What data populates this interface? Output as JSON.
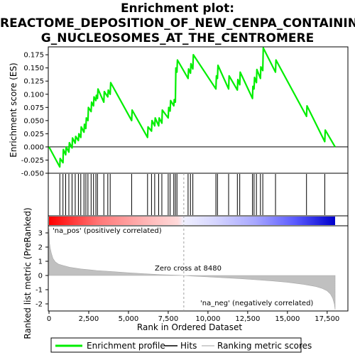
{
  "title_lines": [
    "Enrichment plot:",
    "REACTOME_DEPOSITION_OF_NEW_CENPA_CONTAININ",
    "G_NUCLEOSOMES_AT_THE_CENTROMERE"
  ],
  "chart_data": {
    "type": "line",
    "es_panel": {
      "ylabel": "Enrichment score (ES)",
      "ylim": [
        -0.05,
        0.19
      ],
      "yticks": [
        -0.05,
        -0.025,
        0.0,
        0.025,
        0.05,
        0.075,
        0.1,
        0.125,
        0.15,
        0.175
      ],
      "ytick_labels": [
        "-0.050",
        "-0.025",
        "0.000",
        "0.025",
        "0.050",
        "0.075",
        "0.100",
        "0.125",
        "0.150",
        "0.175"
      ],
      "series": [
        {
          "name": "Enrichment profile",
          "color": "#00ee00",
          "x": [
            0,
            680,
            700,
            880,
            900,
            1050,
            1080,
            1250,
            1280,
            1450,
            1480,
            1650,
            1680,
            1850,
            1880,
            2000,
            2030,
            2200,
            2230,
            2320,
            2350,
            2450,
            2480,
            2650,
            2680,
            2800,
            2830,
            2950,
            2980,
            3050,
            3080,
            3450,
            3480,
            3700,
            3730,
            3850,
            3880,
            5200,
            5230,
            6200,
            6230,
            6450,
            6480,
            6650,
            6680,
            6900,
            6930,
            7100,
            7130,
            7500,
            7530,
            7620,
            7650,
            7850,
            7880,
            7950,
            7980,
            8050,
            8080,
            8750,
            8780,
            8900,
            8930,
            9050,
            9080,
            10500,
            10530,
            10600,
            10630,
            11300,
            11330,
            11850,
            11880,
            12000,
            12030,
            12800,
            12830,
            12900,
            12930,
            13050,
            13080,
            13300,
            13330,
            13450,
            13480,
            14250,
            14280,
            16200,
            16230,
            17350,
            17380,
            18000
          ],
          "y": [
            0.0,
            -0.038,
            -0.022,
            -0.03,
            -0.005,
            -0.015,
            0.0,
            -0.01,
            0.008,
            -0.002,
            0.017,
            0.007,
            0.02,
            0.012,
            0.025,
            0.018,
            0.038,
            0.028,
            0.043,
            0.035,
            0.055,
            0.05,
            0.075,
            0.067,
            0.085,
            0.078,
            0.095,
            0.088,
            0.098,
            0.092,
            0.11,
            0.085,
            0.105,
            0.095,
            0.108,
            0.1,
            0.122,
            0.05,
            0.07,
            0.018,
            0.038,
            0.03,
            0.05,
            0.04,
            0.055,
            0.04,
            0.055,
            0.045,
            0.07,
            0.055,
            0.075,
            0.068,
            0.088,
            0.078,
            0.09,
            0.085,
            0.15,
            0.142,
            0.165,
            0.13,
            0.148,
            0.14,
            0.158,
            0.148,
            0.175,
            0.11,
            0.135,
            0.13,
            0.155,
            0.11,
            0.135,
            0.108,
            0.128,
            0.118,
            0.142,
            0.092,
            0.115,
            0.11,
            0.132,
            0.122,
            0.147,
            0.13,
            0.152,
            0.145,
            0.188,
            0.142,
            0.165,
            0.058,
            0.078,
            0.01,
            0.032,
            0.0
          ]
        }
      ]
    },
    "hits": [
      680,
      880,
      1050,
      1250,
      1450,
      1650,
      1850,
      2000,
      2200,
      2320,
      2450,
      2650,
      2800,
      2950,
      3050,
      3450,
      3700,
      3850,
      5200,
      6200,
      6450,
      6650,
      6900,
      7100,
      7500,
      7620,
      7850,
      7950,
      8050,
      8750,
      8900,
      9050,
      10500,
      10600,
      11300,
      11850,
      12000,
      12800,
      12900,
      13050,
      13300,
      13450,
      14250,
      16200,
      17350
    ],
    "rank_panel": {
      "ylabel": "Ranked list metric (PreRanked)",
      "xlabel": "Rank in Ordered Dataset",
      "ylim": [
        -2.5,
        3.5
      ],
      "yticks": [
        -2,
        -1,
        0,
        1,
        2,
        3
      ],
      "ytick_labels": [
        "-2",
        "-1",
        "0",
        "1",
        "2",
        "3"
      ],
      "xticks": [
        0,
        2500,
        5000,
        7500,
        10000,
        12500,
        15000,
        17500
      ],
      "xtick_labels": [
        "0",
        "2,500",
        "5,000",
        "7,500",
        "10,000",
        "12,500",
        "15,000",
        "17,500"
      ],
      "xlim": [
        0,
        18000
      ],
      "metric_curve": {
        "x": [
          0,
          30,
          80,
          150,
          250,
          400,
          600,
          900,
          1300,
          2000,
          3000,
          4000,
          5000,
          6000,
          7000,
          8000,
          8480,
          9000,
          10000,
          11000,
          12000,
          13000,
          14000,
          15000,
          16000,
          16800,
          17200,
          17500,
          17700,
          17850,
          17950,
          18000
        ],
        "y": [
          3.3,
          2.3,
          1.9,
          1.55,
          1.2,
          0.95,
          0.8,
          0.7,
          0.58,
          0.46,
          0.35,
          0.27,
          0.19,
          0.12,
          0.06,
          0.02,
          0.0,
          -0.04,
          -0.1,
          -0.16,
          -0.22,
          -0.3,
          -0.38,
          -0.48,
          -0.62,
          -0.78,
          -0.92,
          -1.08,
          -1.3,
          -1.6,
          -2.0,
          -2.4
        ]
      },
      "zero_cross_label": "Zero cross at 8480",
      "zero_cross": 8480,
      "pos_label": "'na_pos' (positively correlated)",
      "neg_label": "'na_neg' (negatively correlated)"
    },
    "legend": {
      "placement": "bottom",
      "entries": [
        "Enrichment profile",
        "Hits",
        "Ranking metric scores"
      ]
    },
    "colors": {
      "enrichment": "#00ee00",
      "hits": "#000000",
      "metric": "#c0c0c0",
      "pos_label": "#ff0000",
      "neg_label": "#0000cc",
      "zero_line": "#a0a0a0"
    }
  }
}
